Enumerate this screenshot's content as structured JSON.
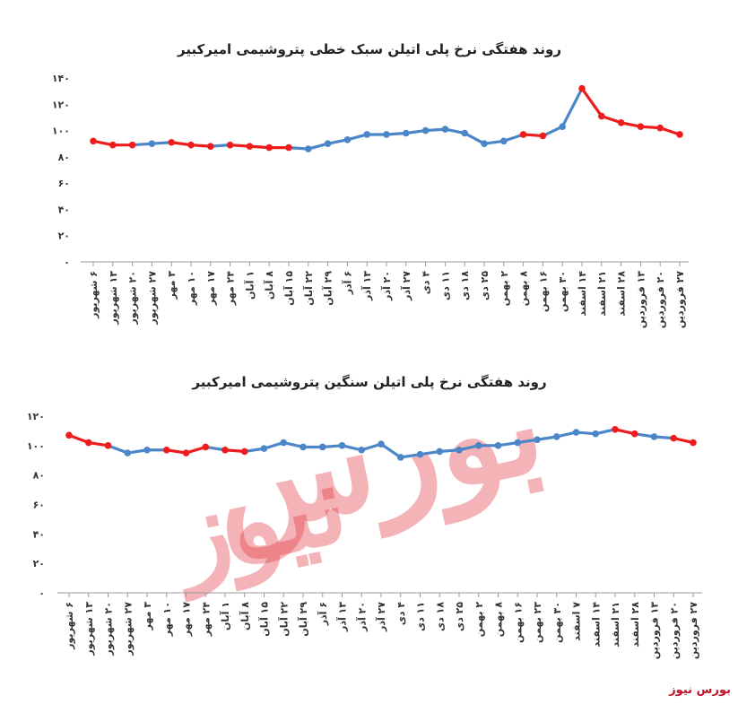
{
  "brand_label": "بورس نیوز",
  "watermark": {
    "line1": "بورس",
    "line2": "نیوز"
  },
  "colors": {
    "blue": "#4a86c8",
    "red": "#ee1c1c",
    "axis": "#999999"
  },
  "chart_data": [
    {
      "type": "line",
      "title": "روند هفتگی نرخ پلی اتیلن سبک خطی پتروشیمی امیرکبیر",
      "ylim": [
        0,
        140
      ],
      "yticks": [
        "۰",
        "۲۰",
        "۴۰",
        "۶۰",
        "۸۰",
        "۱۰۰",
        "۱۲۰",
        "۱۴۰"
      ],
      "categories": [
        "۶ شهریور",
        "۱۳ شهریور",
        "۲۰ شهریور",
        "۲۷ شهریور",
        "۳ مهر",
        "۱۰ مهر",
        "۱۷ مهر",
        "۲۴ مهر",
        "۱ آبان",
        "۸ آبان",
        "۱۵ آبان",
        "۲۲ آبان",
        "۲۹ آبان",
        "۶ آذر",
        "۱۳ آذر",
        "۲۰ آذر",
        "۲۷ آذر",
        "۴ دی",
        "۱۱ دی",
        "۱۸ دی",
        "۲۵ دی",
        "۲ بهمن",
        "۸ بهمن",
        "۱۶ بهمن",
        "۳۰ بهمن",
        "۱۴ اسفند",
        "۲۱ اسفند",
        "۲۸ اسفند",
        "۱۳ فروردین",
        "۲۰ فروردین",
        "۲۷ فروردین"
      ],
      "values": [
        92,
        89,
        89,
        90,
        91,
        89,
        88,
        89,
        88,
        87,
        87,
        86,
        90,
        93,
        97,
        97,
        98,
        100,
        101,
        98,
        90,
        92,
        97,
        96,
        103,
        132,
        111,
        106,
        103,
        102,
        97
      ],
      "segment_colors": [
        "red",
        "red",
        "blue",
        "blue",
        "red",
        "red",
        "blue",
        "red",
        "red",
        "red",
        "blue",
        "blue",
        "blue",
        "blue",
        "blue",
        "blue",
        "blue",
        "blue",
        "blue",
        "blue",
        "blue",
        "blue",
        "red",
        "blue",
        "blue",
        "red",
        "red",
        "red",
        "red",
        "red"
      ]
    },
    {
      "type": "line",
      "title": "روند هفتگی نرخ پلی اتیلن سنگین پتروشیمی امیرکبیر",
      "ylim": [
        0,
        120
      ],
      "yticks": [
        "۰",
        "۲۰",
        "۴۰",
        "۶۰",
        "۸۰",
        "۱۰۰",
        "۱۲۰"
      ],
      "categories": [
        "۶ شهریور",
        "۱۳ شهریور",
        "۲۰ شهریور",
        "۲۷ شهریور",
        "۳ مهر",
        "۱۰ مهر",
        "۱۷ مهر",
        "۲۴ مهر",
        "۱ آبان",
        "۸ آبان",
        "۱۵ آبان",
        "۲۲ آبان",
        "۲۹ آبان",
        "۶ آذر",
        "۱۳ آذر",
        "۲۰ آذر",
        "۲۷ آذر",
        "۴ دی",
        "۱۱ دی",
        "۱۸ دی",
        "۲۵ دی",
        "۲ بهمن",
        "۸ بهمن",
        "۱۶ بهمن",
        "۲۳ بهمن",
        "۳۰ بهمن",
        "۷ اسفند",
        "۱۴ اسفند",
        "۲۱ اسفند",
        "۲۸ اسفند",
        "۱۳ فروردین",
        "۲۰ فروردین",
        "۲۷ فروردین"
      ],
      "values": [
        107,
        102,
        100,
        95,
        97,
        97,
        95,
        99,
        97,
        96,
        98,
        102,
        99,
        99,
        100,
        97,
        101,
        92,
        94,
        96,
        97,
        100,
        100,
        102,
        104,
        106,
        109,
        108,
        111,
        108,
        106,
        105,
        102
      ],
      "segment_colors": [
        "red",
        "red",
        "blue",
        "blue",
        "blue",
        "red",
        "red",
        "blue",
        "red",
        "blue",
        "blue",
        "blue",
        "blue",
        "blue",
        "blue",
        "blue",
        "blue",
        "blue",
        "blue",
        "blue",
        "blue",
        "blue",
        "blue",
        "blue",
        "blue",
        "blue",
        "blue",
        "blue",
        "red",
        "blue",
        "blue",
        "red"
      ]
    }
  ]
}
